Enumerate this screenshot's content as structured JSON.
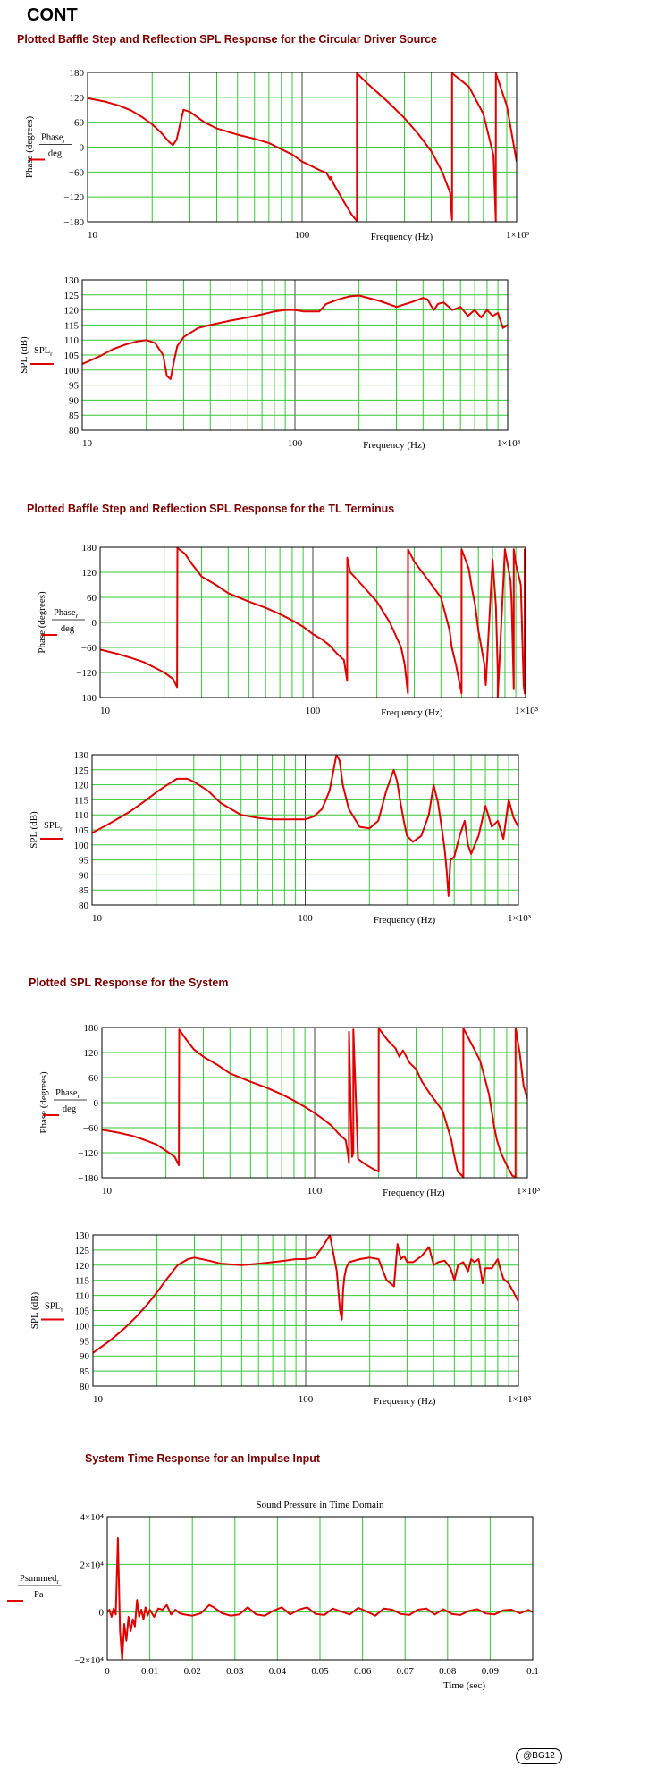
{
  "page": {
    "heading": "CONT",
    "stamp": "@BG12"
  },
  "sections": [
    {
      "title": "Plotted Baffle Step and Reflection SPL Response for the Circular Driver Source"
    },
    {
      "title": "Plotted Baffle Step and Reflection SPL Response for the TL Terminus"
    },
    {
      "title": "Plotted SPL Response for the System"
    },
    {
      "title": "System Time Response for an Impulse Input"
    }
  ],
  "chart_data": [
    {
      "id": "driver-phase",
      "type": "line",
      "title": "",
      "xlabel": "Frequency (Hz)",
      "ylabel": "Phase (degrees)",
      "legend_num": "Phase",
      "legend_sub": "r",
      "legend_den": "deg",
      "xscale": "log",
      "xlim": [
        10,
        1000
      ],
      "ylim": [
        -180,
        180
      ],
      "x_ticks": [
        "10",
        "100",
        "1×10³"
      ],
      "y_ticks": [
        "180",
        "120",
        "60",
        "0",
        "−60",
        "−120",
        "−180"
      ],
      "grid": true,
      "color": "#e00000",
      "series": [
        {
          "x": [
            10,
            12,
            14,
            16,
            18,
            20,
            22,
            24,
            25,
            26,
            27,
            28,
            30,
            35,
            40,
            50,
            60,
            70,
            80,
            90,
            100,
            110,
            120,
            130,
            135,
            136,
            140,
            150,
            160,
            170,
            180,
            180.1,
            200,
            250,
            300,
            350,
            400,
            450,
            490,
            500,
            500.1,
            600,
            700,
            780,
            800,
            800.1,
            900,
            1000
          ],
          "y": [
            118,
            110,
            100,
            88,
            72,
            55,
            35,
            12,
            5,
            18,
            55,
            90,
            85,
            60,
            45,
            30,
            20,
            10,
            -5,
            -18,
            -35,
            -45,
            -55,
            -62,
            -78,
            -72,
            -88,
            -115,
            -140,
            -162,
            -178,
            178,
            155,
            110,
            70,
            30,
            -10,
            -60,
            -110,
            -175,
            178,
            145,
            80,
            -20,
            -178,
            178,
            100,
            -35
          ]
        }
      ]
    },
    {
      "id": "driver-spl",
      "type": "line",
      "title": "",
      "xlabel": "Frequency (Hz)",
      "ylabel": "SPL (dB)",
      "legend_num": "SPL",
      "legend_sub": "r",
      "legend_den": "",
      "xscale": "log",
      "xlim": [
        10,
        1000
      ],
      "ylim": [
        80,
        130
      ],
      "x_ticks": [
        "10",
        "100",
        "1×10³"
      ],
      "y_ticks": [
        "130",
        "125",
        "120",
        "115",
        "110",
        "105",
        "100",
        "95",
        "90",
        "85",
        "80"
      ],
      "grid": true,
      "color": "#e00000",
      "series": [
        {
          "x": [
            10,
            12,
            14,
            16,
            18,
            20,
            22,
            24,
            25,
            26,
            27,
            28,
            30,
            35,
            40,
            50,
            60,
            70,
            80,
            90,
            100,
            110,
            120,
            130,
            140,
            160,
            180,
            200,
            250,
            300,
            350,
            400,
            420,
            440,
            450,
            470,
            500,
            550,
            600,
            650,
            700,
            750,
            800,
            850,
            900,
            950,
            1000
          ],
          "y": [
            102,
            104.5,
            107,
            108.5,
            109.5,
            110,
            109,
            105,
            98,
            97,
            103,
            108,
            111,
            114,
            115,
            116.5,
            117.5,
            118.5,
            119.5,
            120,
            120,
            119.5,
            119.5,
            119.5,
            122,
            123.5,
            124.5,
            124.8,
            123,
            121,
            122.5,
            124,
            123.5,
            121,
            120,
            122,
            122.5,
            120,
            121,
            118,
            120,
            117.5,
            120,
            118,
            119,
            114,
            115
          ]
        }
      ]
    },
    {
      "id": "tl-phase",
      "type": "line",
      "title": "",
      "xlabel": "Frequency (Hz)",
      "ylabel": "Phase (degrees)",
      "legend_num": "Phase",
      "legend_sub": "r",
      "legend_den": "deg",
      "xscale": "log",
      "xlim": [
        10,
        1000
      ],
      "ylim": [
        -180,
        180
      ],
      "x_ticks": [
        "10",
        "100",
        "1×10³"
      ],
      "y_ticks": [
        "180",
        "120",
        "60",
        "0",
        "−60",
        "−120",
        "−180"
      ],
      "grid": true,
      "color": "#e00000",
      "series": [
        {
          "x": [
            10,
            12,
            14,
            16,
            18,
            20,
            22,
            23,
            23.1,
            25,
            27,
            30,
            35,
            40,
            50,
            60,
            70,
            80,
            90,
            100,
            110,
            120,
            130,
            140,
            144,
            145,
            145.1,
            150,
            170,
            200,
            230,
            260,
            270,
            279,
            280,
            280.1,
            300,
            350,
            400,
            420,
            440,
            450,
            470,
            500,
            500.1,
            540,
            560,
            580,
            600,
            620,
            640,
            650,
            700,
            725,
            740,
            740.1,
            800,
            850,
            860,
            880,
            880.1,
            900,
            950,
            980,
            990,
            990.1,
            1000
          ],
          "y": [
            -65,
            -75,
            -85,
            -95,
            -108,
            -120,
            -135,
            -155,
            178,
            165,
            140,
            110,
            90,
            70,
            50,
            35,
            20,
            5,
            -10,
            -28,
            -40,
            -55,
            -75,
            -90,
            -130,
            -140,
            155,
            120,
            90,
            50,
            0,
            -60,
            -100,
            -165,
            -170,
            175,
            145,
            100,
            60,
            20,
            -20,
            -60,
            -100,
            -170,
            175,
            130,
            80,
            40,
            -20,
            -60,
            -100,
            -150,
            150,
            40,
            -120,
            -178,
            175,
            100,
            50,
            -160,
            175,
            140,
            90,
            -150,
            -170,
            175,
            175
          ]
        }
      ]
    },
    {
      "id": "tl-spl",
      "type": "line",
      "title": "",
      "xlabel": "Frequency (Hz)",
      "ylabel": "SPL (dB)",
      "legend_num": "SPL",
      "legend_sub": "r",
      "legend_den": "",
      "xscale": "log",
      "xlim": [
        10,
        1000
      ],
      "ylim": [
        80,
        130
      ],
      "x_ticks": [
        "10",
        "100",
        "1×10³"
      ],
      "y_ticks": [
        "130",
        "125",
        "120",
        "115",
        "110",
        "105",
        "100",
        "95",
        "90",
        "85",
        "80"
      ],
      "grid": true,
      "color": "#e00000",
      "series": [
        {
          "x": [
            10,
            12,
            15,
            18,
            20,
            22,
            25,
            28,
            30,
            35,
            40,
            50,
            60,
            70,
            80,
            90,
            100,
            110,
            120,
            130,
            135,
            140,
            145,
            150,
            160,
            180,
            200,
            220,
            240,
            260,
            270,
            280,
            290,
            300,
            320,
            350,
            380,
            400,
            420,
            440,
            450,
            460,
            470,
            480,
            500,
            530,
            560,
            580,
            600,
            650,
            700,
            750,
            800,
            850,
            900,
            950,
            1000
          ],
          "y": [
            104,
            107,
            111,
            115,
            117.5,
            119.5,
            122,
            122,
            121,
            118,
            114,
            110,
            109,
            108.5,
            108.5,
            108.5,
            108.5,
            109.5,
            112,
            118,
            124,
            130,
            128,
            120,
            112,
            106,
            105.5,
            108,
            118,
            125,
            121,
            114,
            108,
            103,
            101,
            103,
            110,
            120,
            114,
            104,
            99,
            92,
            83,
            95,
            96,
            103,
            108,
            100,
            97,
            103,
            113,
            106,
            108,
            102,
            115,
            109,
            106
          ]
        }
      ]
    },
    {
      "id": "system-phase",
      "type": "line",
      "title": "",
      "xlabel": "Frequency (Hz)",
      "ylabel": "Phase (degrees)",
      "legend_num": "Phase",
      "legend_sub": "r",
      "legend_den": "deg",
      "xscale": "log",
      "xlim": [
        10,
        1000
      ],
      "ylim": [
        -180,
        180
      ],
      "x_ticks": [
        "10",
        "100",
        "1×10³"
      ],
      "y_ticks": [
        "180",
        "120",
        "60",
        "0",
        "−60",
        "−120",
        "−180"
      ],
      "grid": true,
      "color": "#e00000",
      "series": [
        {
          "x": [
            10,
            12,
            14,
            16,
            18,
            20,
            22,
            23,
            23.1,
            25,
            27,
            30,
            35,
            40,
            50,
            60,
            70,
            80,
            90,
            100,
            110,
            120,
            130,
            140,
            144,
            145,
            145.1,
            148,
            150,
            152,
            152.1,
            160,
            170,
            190,
            200,
            200.1,
            220,
            240,
            250,
            260,
            280,
            300,
            320,
            350,
            400,
            440,
            450,
            470,
            500,
            500.1,
            560,
            600,
            630,
            660,
            680,
            700,
            720,
            750,
            800,
            850,
            880,
            880.1,
            920,
            960,
            1000
          ],
          "y": [
            -65,
            -72,
            -80,
            -90,
            -100,
            -115,
            -130,
            -150,
            175,
            150,
            128,
            110,
            90,
            70,
            50,
            35,
            20,
            5,
            -10,
            -25,
            -40,
            -55,
            -75,
            -90,
            -130,
            -145,
            170,
            -20,
            -130,
            -120,
            175,
            -135,
            -145,
            -160,
            -165,
            178,
            150,
            130,
            110,
            125,
            95,
            80,
            50,
            20,
            -20,
            -90,
            -120,
            -165,
            -178,
            178,
            130,
            100,
            60,
            20,
            -20,
            -60,
            -90,
            -120,
            -150,
            -175,
            -178,
            178,
            120,
            40,
            10
          ]
        }
      ]
    },
    {
      "id": "system-spl",
      "type": "line",
      "title": "",
      "xlabel": "Frequency (Hz)",
      "ylabel": "SPL (dB)",
      "legend_num": "SPL",
      "legend_sub": "r",
      "legend_den": "",
      "xscale": "log",
      "xlim": [
        10,
        1000
      ],
      "ylim": [
        80,
        130
      ],
      "x_ticks": [
        "10",
        "100",
        "1×10³"
      ],
      "y_ticks": [
        "130",
        "125",
        "120",
        "115",
        "110",
        "105",
        "100",
        "95",
        "90",
        "85",
        "80"
      ],
      "grid": true,
      "color": "#e00000",
      "series": [
        {
          "x": [
            10,
            12,
            14,
            16,
            18,
            20,
            22,
            25,
            28,
            30,
            35,
            40,
            50,
            60,
            70,
            80,
            90,
            100,
            110,
            120,
            130,
            140,
            145,
            148,
            150,
            152,
            155,
            160,
            180,
            200,
            220,
            240,
            260,
            270,
            280,
            290,
            300,
            320,
            350,
            380,
            400,
            420,
            450,
            480,
            500,
            520,
            550,
            580,
            600,
            620,
            650,
            680,
            700,
            750,
            800,
            820,
            850,
            900,
            950,
            1000
          ],
          "y": [
            91,
            95,
            99,
            103,
            107,
            111,
            115,
            120,
            122,
            122.5,
            121.5,
            120.5,
            120,
            120.5,
            121,
            121.5,
            122,
            122,
            122.5,
            126,
            130,
            118,
            105,
            102,
            112,
            116,
            119,
            121,
            122,
            122.5,
            122,
            115,
            113,
            127,
            122,
            123,
            121,
            121,
            123,
            126,
            120,
            121,
            121.5,
            119,
            115,
            120,
            121,
            118,
            122,
            121,
            122,
            114,
            119,
            119,
            122,
            119,
            115.5,
            114,
            111,
            108
          ]
        }
      ]
    },
    {
      "id": "impulse",
      "type": "line",
      "title": "Sound Pressure in Time Domain",
      "xlabel": "Time (sec)",
      "ylabel": "",
      "legend_num": "Psummed",
      "legend_sub": "r",
      "legend_den": "Pa",
      "xscale": "linear",
      "xlim": [
        0,
        0.1
      ],
      "ylim": [
        -20000,
        40000
      ],
      "x_ticks": [
        "0",
        "0.01",
        "0.02",
        "0.03",
        "0.04",
        "0.05",
        "0.06",
        "0.07",
        "0.08",
        "0.09",
        "0.1"
      ],
      "y_ticks": [
        "4×10⁴",
        "2×10⁴",
        "0",
        "−2×10⁴"
      ],
      "grid": true,
      "color": "#e00000",
      "series": [
        {
          "x": [
            0,
            0.0005,
            0.001,
            0.0015,
            0.002,
            0.0025,
            0.003,
            0.0035,
            0.004,
            0.0045,
            0.005,
            0.0055,
            0.006,
            0.0065,
            0.007,
            0.0075,
            0.008,
            0.0085,
            0.009,
            0.0095,
            0.01,
            0.011,
            0.012,
            0.013,
            0.014,
            0.015,
            0.016,
            0.017,
            0.018,
            0.02,
            0.022,
            0.024,
            0.025,
            0.027,
            0.029,
            0.031,
            0.033,
            0.035,
            0.037,
            0.039,
            0.041,
            0.043,
            0.045,
            0.047,
            0.049,
            0.051,
            0.053,
            0.055,
            0.057,
            0.059,
            0.061,
            0.063,
            0.065,
            0.067,
            0.069,
            0.071,
            0.073,
            0.075,
            0.077,
            0.079,
            0.081,
            0.083,
            0.085,
            0.087,
            0.089,
            0.091,
            0.093,
            0.095,
            0.097,
            0.099,
            0.1
          ],
          "y": [
            0,
            1000,
            -2000,
            1500,
            -1000,
            31000,
            -8000,
            -20000,
            -5000,
            -12000,
            -2000,
            -8000,
            -3000,
            -6000,
            5000,
            -2000,
            1000,
            -3000,
            2000,
            -1500,
            1000,
            -2000,
            1500,
            1000,
            3000,
            -1000,
            1000,
            -500,
            -1000,
            -1500,
            -500,
            3000,
            2000,
            -500,
            -1500,
            -1000,
            2000,
            -1000,
            -1500,
            500,
            2000,
            -1000,
            1000,
            2000,
            -800,
            -1200,
            1500,
            200,
            -1000,
            1800,
            200,
            -1500,
            1500,
            1000,
            -800,
            -1200,
            1000,
            1500,
            -1000,
            1200,
            -800,
            -1200,
            500,
            1200,
            -600,
            -1000,
            700,
            1000,
            -500,
            900,
            0
          ]
        }
      ]
    }
  ]
}
